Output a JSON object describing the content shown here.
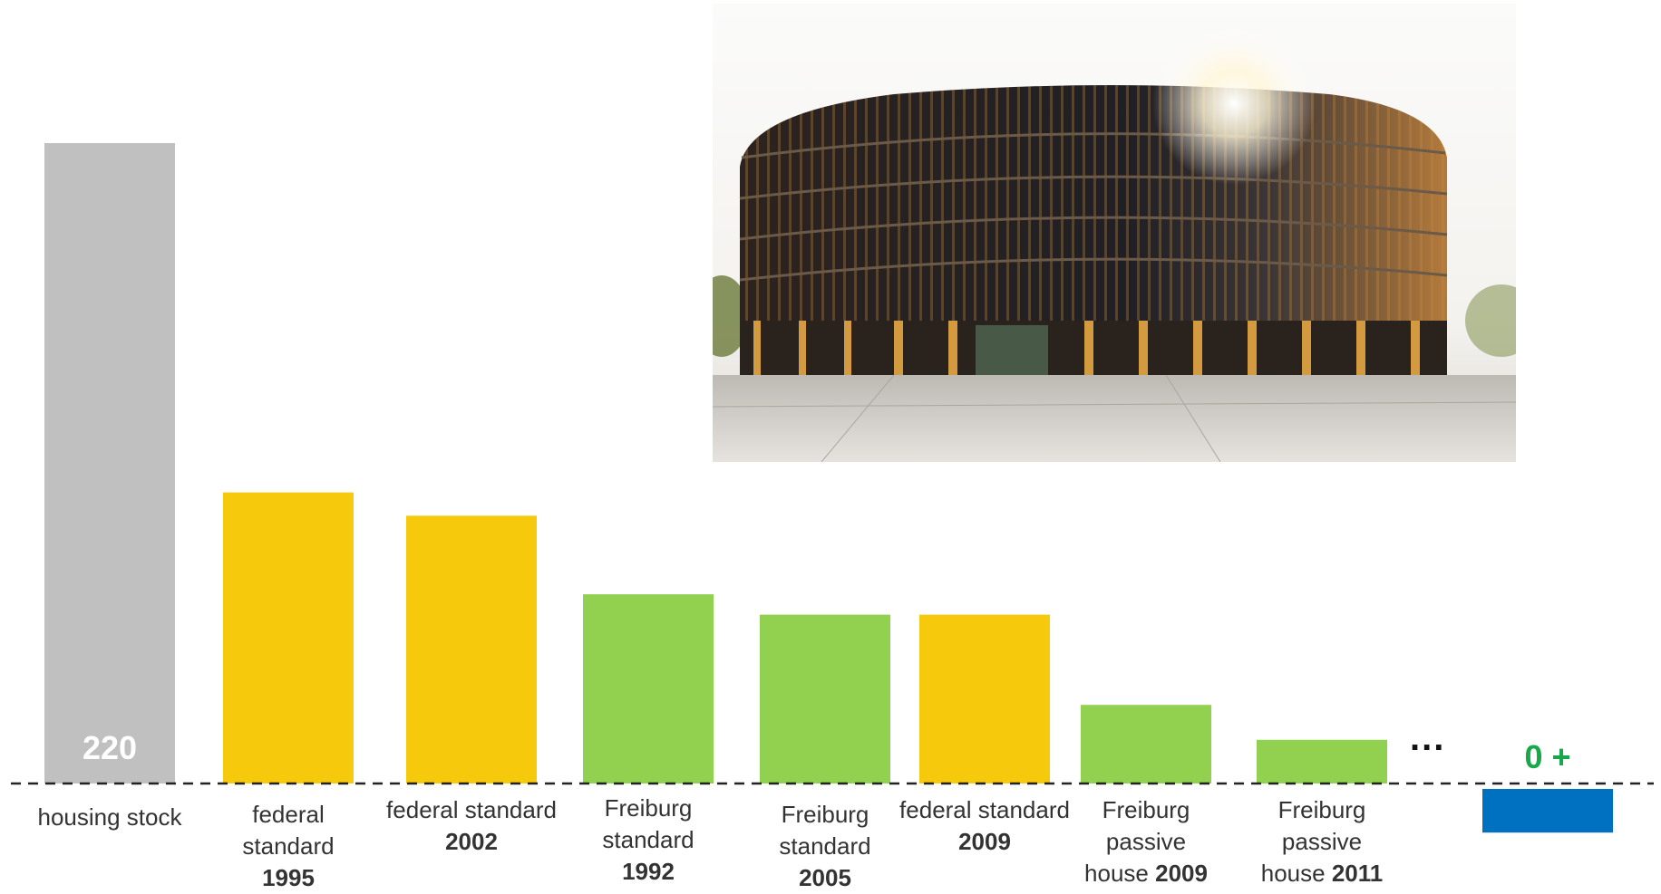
{
  "chart_data": {
    "type": "bar",
    "title": "",
    "xlabel": "",
    "ylabel": "",
    "ylim": [
      -20,
      220
    ],
    "categories": [
      {
        "text": "housing stock",
        "year": ""
      },
      {
        "text": "federal standard",
        "year": "1995"
      },
      {
        "text": "federal standard",
        "year": "2002"
      },
      {
        "text": "Freiburg standard",
        "year": "1992"
      },
      {
        "text": "Freiburg standard",
        "year": "2005"
      },
      {
        "text": "federal standard",
        "year": "2009"
      },
      {
        "text": "Freiburg passive house",
        "year": "2009"
      },
      {
        "text": "Freiburg passive house",
        "year": "2011"
      },
      {
        "text": "",
        "year": ""
      }
    ],
    "values": [
      220,
      100,
      92,
      65,
      58,
      58,
      27,
      15,
      -15
    ],
    "colors": [
      "#c0c0c0",
      "#f7c90c",
      "#f7c90c",
      "#92d050",
      "#92d050",
      "#f7c90c",
      "#92d050",
      "#92d050",
      "#0070c0"
    ],
    "value_labels": {
      "first": "220",
      "last": "0 +"
    },
    "ellipsis": "...",
    "grid": false,
    "legend": "none",
    "baseline": "dashed"
  }
}
